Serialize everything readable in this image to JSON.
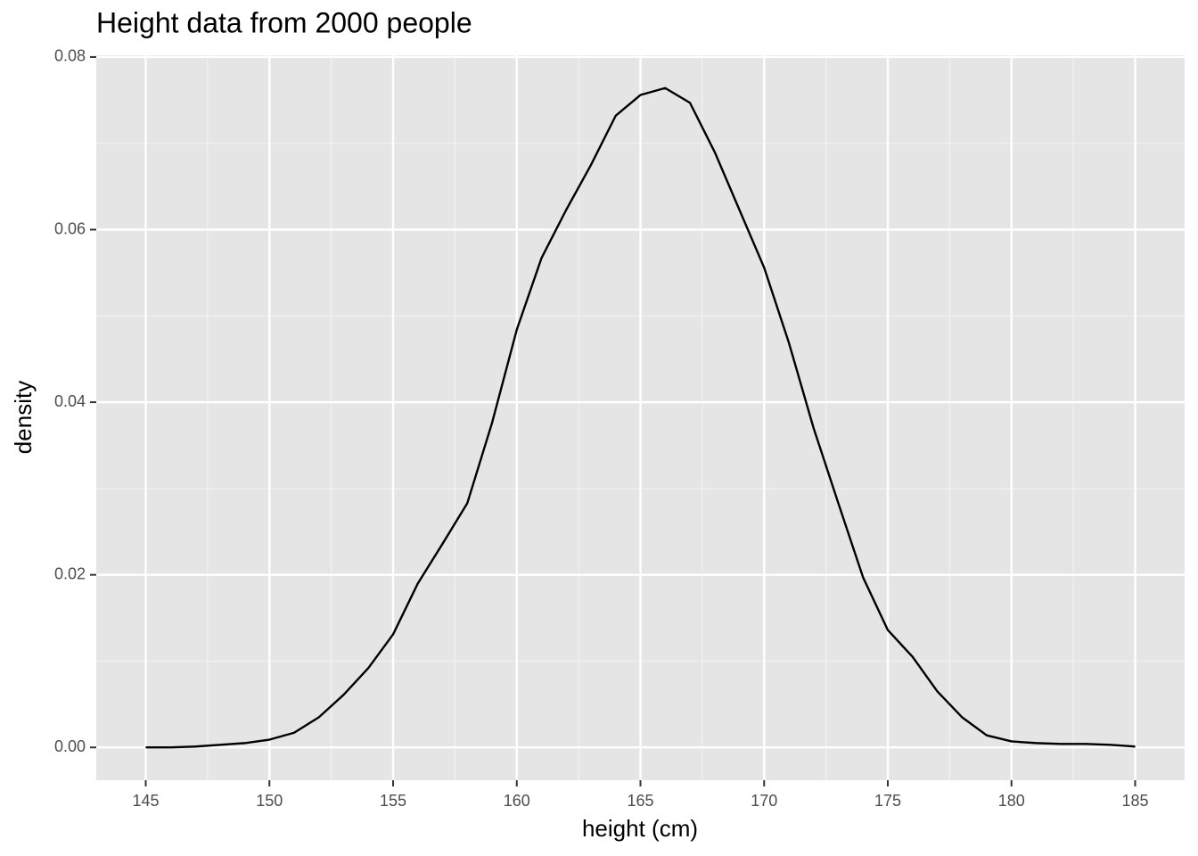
{
  "chart_data": {
    "type": "line",
    "title": "Height data from 2000 people",
    "xlabel": "height (cm)",
    "ylabel": "density",
    "x": [
      145,
      146,
      147,
      148,
      149,
      150,
      151,
      152,
      153,
      154,
      155,
      156,
      157,
      158,
      159,
      160,
      161,
      162,
      163,
      164,
      165,
      166,
      167,
      168,
      169,
      170,
      171,
      172,
      173,
      174,
      175,
      176,
      177,
      178,
      179,
      180,
      181,
      182,
      183,
      184,
      185
    ],
    "series": [
      {
        "name": "density",
        "color": "#000000",
        "values": [
          0,
          0,
          0.0001,
          0.0003,
          0.0005,
          0.0009,
          0.0017,
          0.0035,
          0.0061,
          0.0092,
          0.0131,
          0.019,
          0.0236,
          0.0283,
          0.0376,
          0.0484,
          0.0567,
          0.0623,
          0.0675,
          0.0732,
          0.0756,
          0.0764,
          0.0747,
          0.069,
          0.0623,
          0.0556,
          0.0469,
          0.037,
          0.0283,
          0.0197,
          0.0136,
          0.0105,
          0.0065,
          0.0035,
          0.0014,
          0.0007,
          0.0005,
          0.0004,
          0.0004,
          0.0003,
          0.0001
        ]
      }
    ],
    "xlim": [
      143,
      187
    ],
    "ylim": [
      -0.0038,
      0.0802
    ],
    "xticks": [
      145,
      150,
      155,
      160,
      165,
      170,
      175,
      180,
      185
    ],
    "yticks": [
      {
        "value": 0,
        "label": "0.00"
      },
      {
        "value": 0.02,
        "label": "0.02"
      },
      {
        "value": 0.04,
        "label": "0.04"
      },
      {
        "value": 0.06,
        "label": "0.06"
      },
      {
        "value": 0.08,
        "label": "0.08"
      }
    ],
    "x_minor_grid": [
      147.5,
      152.5,
      157.5,
      162.5,
      167.5,
      172.5,
      177.5,
      182.5
    ],
    "y_minor_grid": [
      0.01,
      0.03,
      0.05,
      0.07
    ],
    "grid": true,
    "panel_color": "#e5e5e5"
  }
}
